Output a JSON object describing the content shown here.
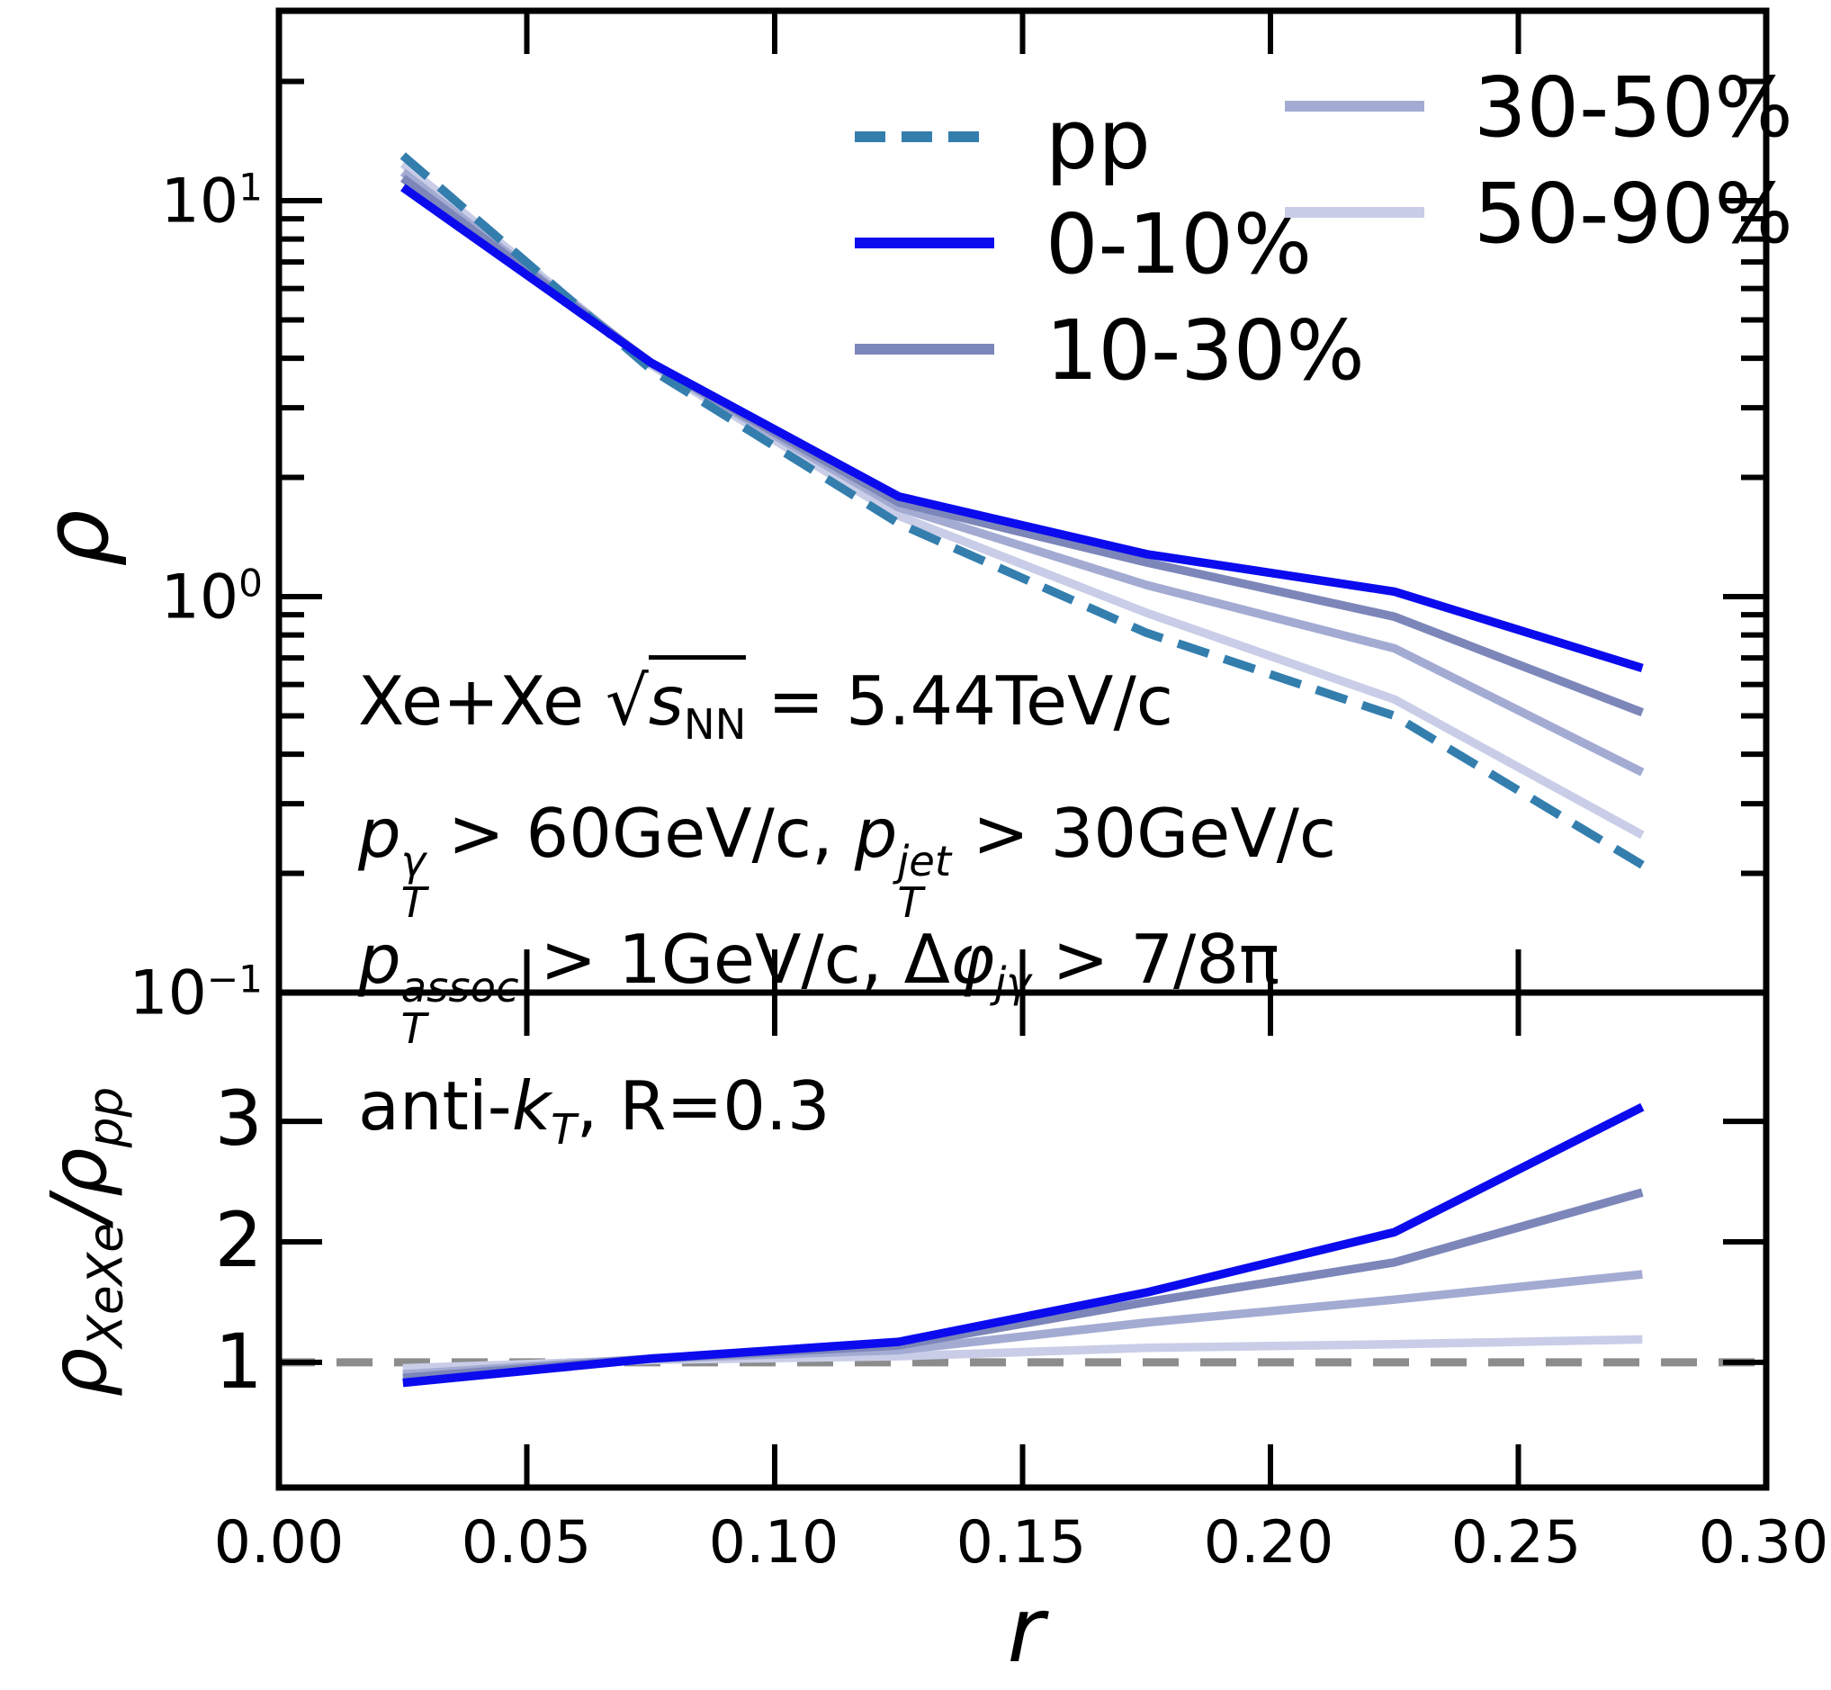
{
  "chart_data": [
    {
      "type": "line",
      "panel": "top",
      "x": [
        0.025,
        0.075,
        0.125,
        0.175,
        0.225,
        0.275
      ],
      "xlim": [
        0.0,
        0.3
      ],
      "ylim": [
        0.1,
        30.2
      ],
      "yscale": "log",
      "ylabel": "ρ",
      "yticks_major": [
        10,
        1,
        0.1
      ],
      "yticks_minor": [
        20,
        9,
        8,
        7,
        6,
        5,
        4,
        3,
        2,
        0.9,
        0.8,
        0.7,
        0.6,
        0.5,
        0.4,
        0.3,
        0.2
      ],
      "xticks_major": [
        0.0,
        0.05,
        0.1,
        0.15,
        0.2,
        0.25,
        0.3
      ],
      "grid": false,
      "series": [
        {
          "name": "pp",
          "color": "#347eae",
          "style": "dashed",
          "values": [
            13.0,
            3.75,
            1.53,
            0.81,
            0.5,
            0.21
          ]
        },
        {
          "name": "0-10%",
          "color": "#0b0bee",
          "style": "solid",
          "values": [
            10.8,
            3.9,
            1.79,
            1.28,
            1.03,
            0.66
          ]
        },
        {
          "name": "10-30%",
          "color": "#7c86b9",
          "style": "solid",
          "values": [
            11.4,
            3.9,
            1.73,
            1.22,
            0.89,
            0.51
          ]
        },
        {
          "name": "30-50%",
          "color": "#a3abd2",
          "style": "solid",
          "values": [
            11.8,
            3.88,
            1.68,
            1.07,
            0.74,
            0.36
          ]
        },
        {
          "name": "50-90%",
          "color": "#c9cde7",
          "style": "solid",
          "values": [
            12.4,
            3.85,
            1.6,
            0.91,
            0.55,
            0.25
          ]
        }
      ],
      "ytick_labels": [
        {
          "base": "10",
          "exp": "1"
        },
        {
          "base": "10",
          "exp": "0"
        },
        {
          "base": "10",
          "exp": "−1"
        }
      ]
    },
    {
      "type": "line",
      "panel": "bottom",
      "x": [
        0.025,
        0.075,
        0.125,
        0.175,
        0.225,
        0.275
      ],
      "xlim": [
        0.0,
        0.3
      ],
      "ylim": [
        -0.04,
        4.07
      ],
      "yscale": "linear",
      "xlabel": "r",
      "ylabel": "ρ_XeXe/ρ_pp",
      "yticks_major": [
        1,
        2,
        3
      ],
      "ytick_labels": [
        "3",
        "2",
        "1"
      ],
      "xticks_major": [
        0.0,
        0.05,
        0.1,
        0.15,
        0.2,
        0.25,
        0.3
      ],
      "xtick_labels": [
        "0.00",
        "0.05",
        "0.10",
        "0.15",
        "0.20",
        "0.25",
        "0.30"
      ],
      "grid": false,
      "ref_line": {
        "value": 1.0,
        "color": "#8c8c8c",
        "style": "dashed"
      },
      "series": [
        {
          "name": "0-10%",
          "color": "#0b0bee",
          "style": "solid",
          "values": [
            0.83,
            1.03,
            1.17,
            1.58,
            2.08,
            3.12
          ]
        },
        {
          "name": "10-30%",
          "color": "#7c86b9",
          "style": "solid",
          "values": [
            0.87,
            1.03,
            1.14,
            1.5,
            1.83,
            2.41
          ]
        },
        {
          "name": "30-50%",
          "color": "#a3abd2",
          "style": "solid",
          "values": [
            0.9,
            1.03,
            1.1,
            1.33,
            1.52,
            1.73
          ]
        },
        {
          "name": "50-90%",
          "color": "#c9cde7",
          "style": "solid",
          "values": [
            0.95,
            1.02,
            1.05,
            1.12,
            1.15,
            1.19
          ]
        }
      ]
    }
  ],
  "axes": {
    "top": {
      "ylabel": "ρ",
      "ytick_0_base": "10",
      "ytick_0_exp": "1",
      "ytick_1_base": "10",
      "ytick_1_exp": "0",
      "ytick_2_base": "10",
      "ytick_2_exp": "−1"
    },
    "bottom": {
      "ylabel_rho1": "ρ",
      "ylabel_sub1": "XeXe",
      "ylabel_rho2": "/ρ",
      "ylabel_sub2": "pp",
      "ytick_3": "3",
      "ytick_2": "2",
      "ytick_1": "1",
      "xlabel": "r",
      "xtick_labels": [
        "0.00",
        "0.05",
        "0.10",
        "0.15",
        "0.20",
        "0.25",
        "0.30"
      ]
    }
  },
  "legend": {
    "position": "upper right, two columns, no frame",
    "entries": [
      {
        "label": "pp",
        "color": "#347eae",
        "dashed": true
      },
      {
        "label": "0-10%",
        "color": "#0b0bee",
        "dashed": false
      },
      {
        "label": "10-30%",
        "color": "#7c86b9",
        "dashed": false
      },
      {
        "label": "30-50%",
        "color": "#a3abd2",
        "dashed": false
      },
      {
        "label": "50-90%",
        "color": "#c9cde7",
        "dashed": false
      }
    ]
  },
  "annotation": {
    "line1": {
      "prefix": "Xe+Xe ",
      "sqrt": "√",
      "s": "s",
      "sub": "NN",
      "suffix": " = 5.44TeV/c"
    },
    "line2": {
      "p1": "p",
      "sup1": "γ",
      "sub1": "T",
      "mid": " > 60GeV/c, ",
      "p2": "p",
      "sup2": "jet",
      "sub2": "T",
      "suffix": " > 30GeV/c"
    },
    "line3": {
      "p1": "p",
      "sup1": "assoc",
      "sub1": "T",
      "mid": " > 1GeV/c, Δ",
      "phi": "φ",
      "sub2": "jγ",
      "suffix": " >  7/8π"
    },
    "line4": {
      "prefix": "anti-",
      "k": "k",
      "sub": "T",
      "suffix": ", R=0.3"
    }
  }
}
